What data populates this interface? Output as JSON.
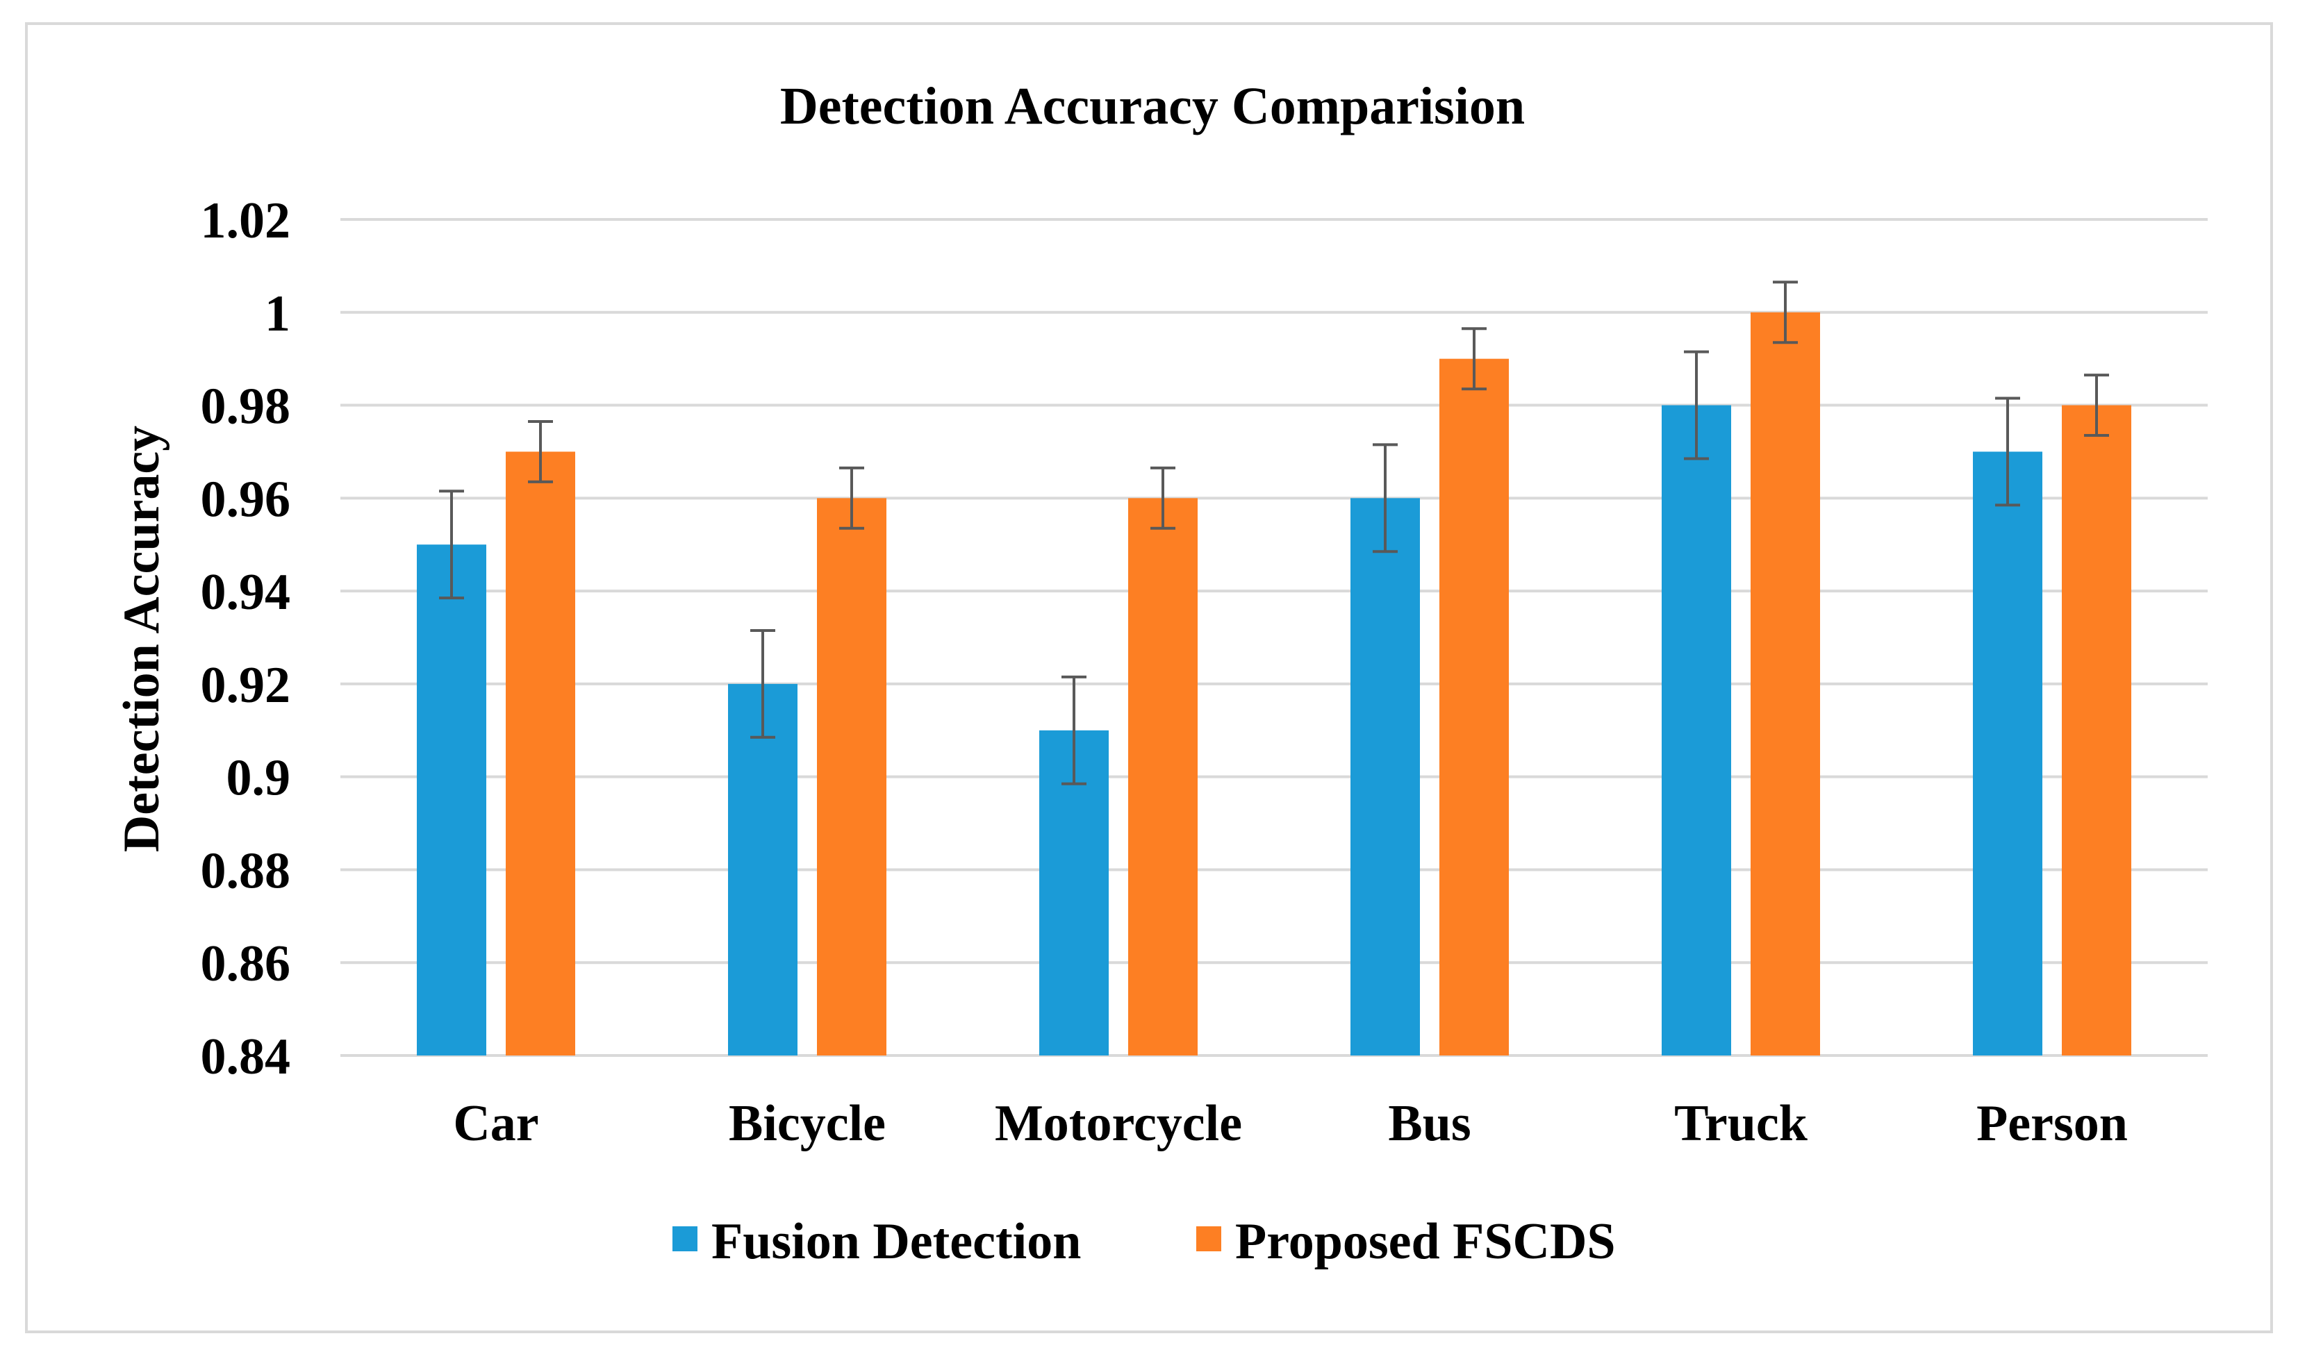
{
  "chart_data": {
    "type": "bar",
    "title": "Detection Accuracy Comparision",
    "xlabel": "",
    "ylabel": "Detection Accuracy",
    "ylim": [
      0.84,
      1.02
    ],
    "yticks": [
      "0.84",
      "0.86",
      "0.88",
      "0.9",
      "0.92",
      "0.94",
      "0.96",
      "0.98",
      "1",
      "1.02"
    ],
    "categories": [
      "Car",
      "Bicycle",
      "Motorcycle",
      "Bus",
      "Truck",
      "Person"
    ],
    "grid": true,
    "legend_position": "bottom",
    "series": [
      {
        "name": "Fusion Detection",
        "color": "#1b9bd7",
        "values": [
          0.95,
          0.92,
          0.91,
          0.96,
          0.98,
          0.97
        ],
        "error": [
          0.0115,
          0.0115,
          0.0115,
          0.0115,
          0.0115,
          0.0115
        ]
      },
      {
        "name": "Proposed FSCDS",
        "color": "#fd7f23",
        "values": [
          0.97,
          0.96,
          0.96,
          0.99,
          1.0,
          0.98
        ],
        "error": [
          0.0065,
          0.0065,
          0.0065,
          0.0065,
          0.0065,
          0.0065
        ]
      }
    ]
  }
}
